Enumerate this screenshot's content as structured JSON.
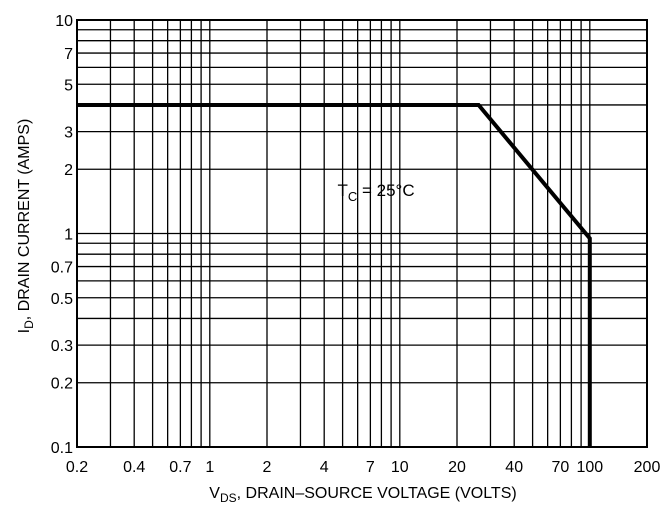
{
  "chart_data": {
    "type": "line",
    "title": "",
    "xlabel": {
      "symbol": "V",
      "subscript": "DS",
      "rest": ", DRAIN–SOURCE VOLTAGE (VOLTS)"
    },
    "ylabel": {
      "symbol": "I",
      "subscript": "D",
      "rest": ", DRAIN CURRENT (AMPS)"
    },
    "x_scale": "log",
    "y_scale": "log",
    "xlim": [
      0.2,
      200
    ],
    "ylim": [
      0.1,
      10
    ],
    "grid": true,
    "x_ticks": [
      0.2,
      0.4,
      0.7,
      1,
      2,
      4,
      7,
      10,
      20,
      40,
      70,
      100,
      200
    ],
    "x_tick_labels": [
      "0.2",
      "0.4",
      "0.7",
      "1",
      "2",
      "4",
      "7",
      "10",
      "20",
      "40",
      "70",
      "100",
      "200"
    ],
    "y_ticks": [
      0.1,
      0.2,
      0.3,
      0.5,
      0.7,
      1,
      2,
      3,
      5,
      7,
      10
    ],
    "y_tick_labels": [
      "0.1",
      "0.2",
      "0.3",
      "0.5",
      "0.7",
      "1",
      "2",
      "3",
      "5",
      "7",
      "10"
    ],
    "x_grid": [
      0.2,
      0.3,
      0.4,
      0.5,
      0.6,
      0.7,
      0.8,
      0.9,
      1,
      2,
      3,
      4,
      5,
      6,
      7,
      8,
      9,
      10,
      20,
      30,
      40,
      50,
      60,
      70,
      80,
      90,
      100,
      200
    ],
    "y_grid": [
      0.1,
      0.2,
      0.3,
      0.4,
      0.5,
      0.6,
      0.7,
      0.8,
      0.9,
      1,
      2,
      3,
      4,
      5,
      6,
      7,
      8,
      9,
      10
    ],
    "series": [
      {
        "x": [
          0.2,
          26,
          100,
          100
        ],
        "y": [
          4,
          4,
          0.95,
          0.1
        ]
      }
    ],
    "annotations": [
      {
        "symbol": "T",
        "subscript": "C",
        "rest": " = 25°C",
        "x": 7.5,
        "y": 1.5
      }
    ],
    "line_color": "#000000",
    "grid_color": "#000000"
  }
}
